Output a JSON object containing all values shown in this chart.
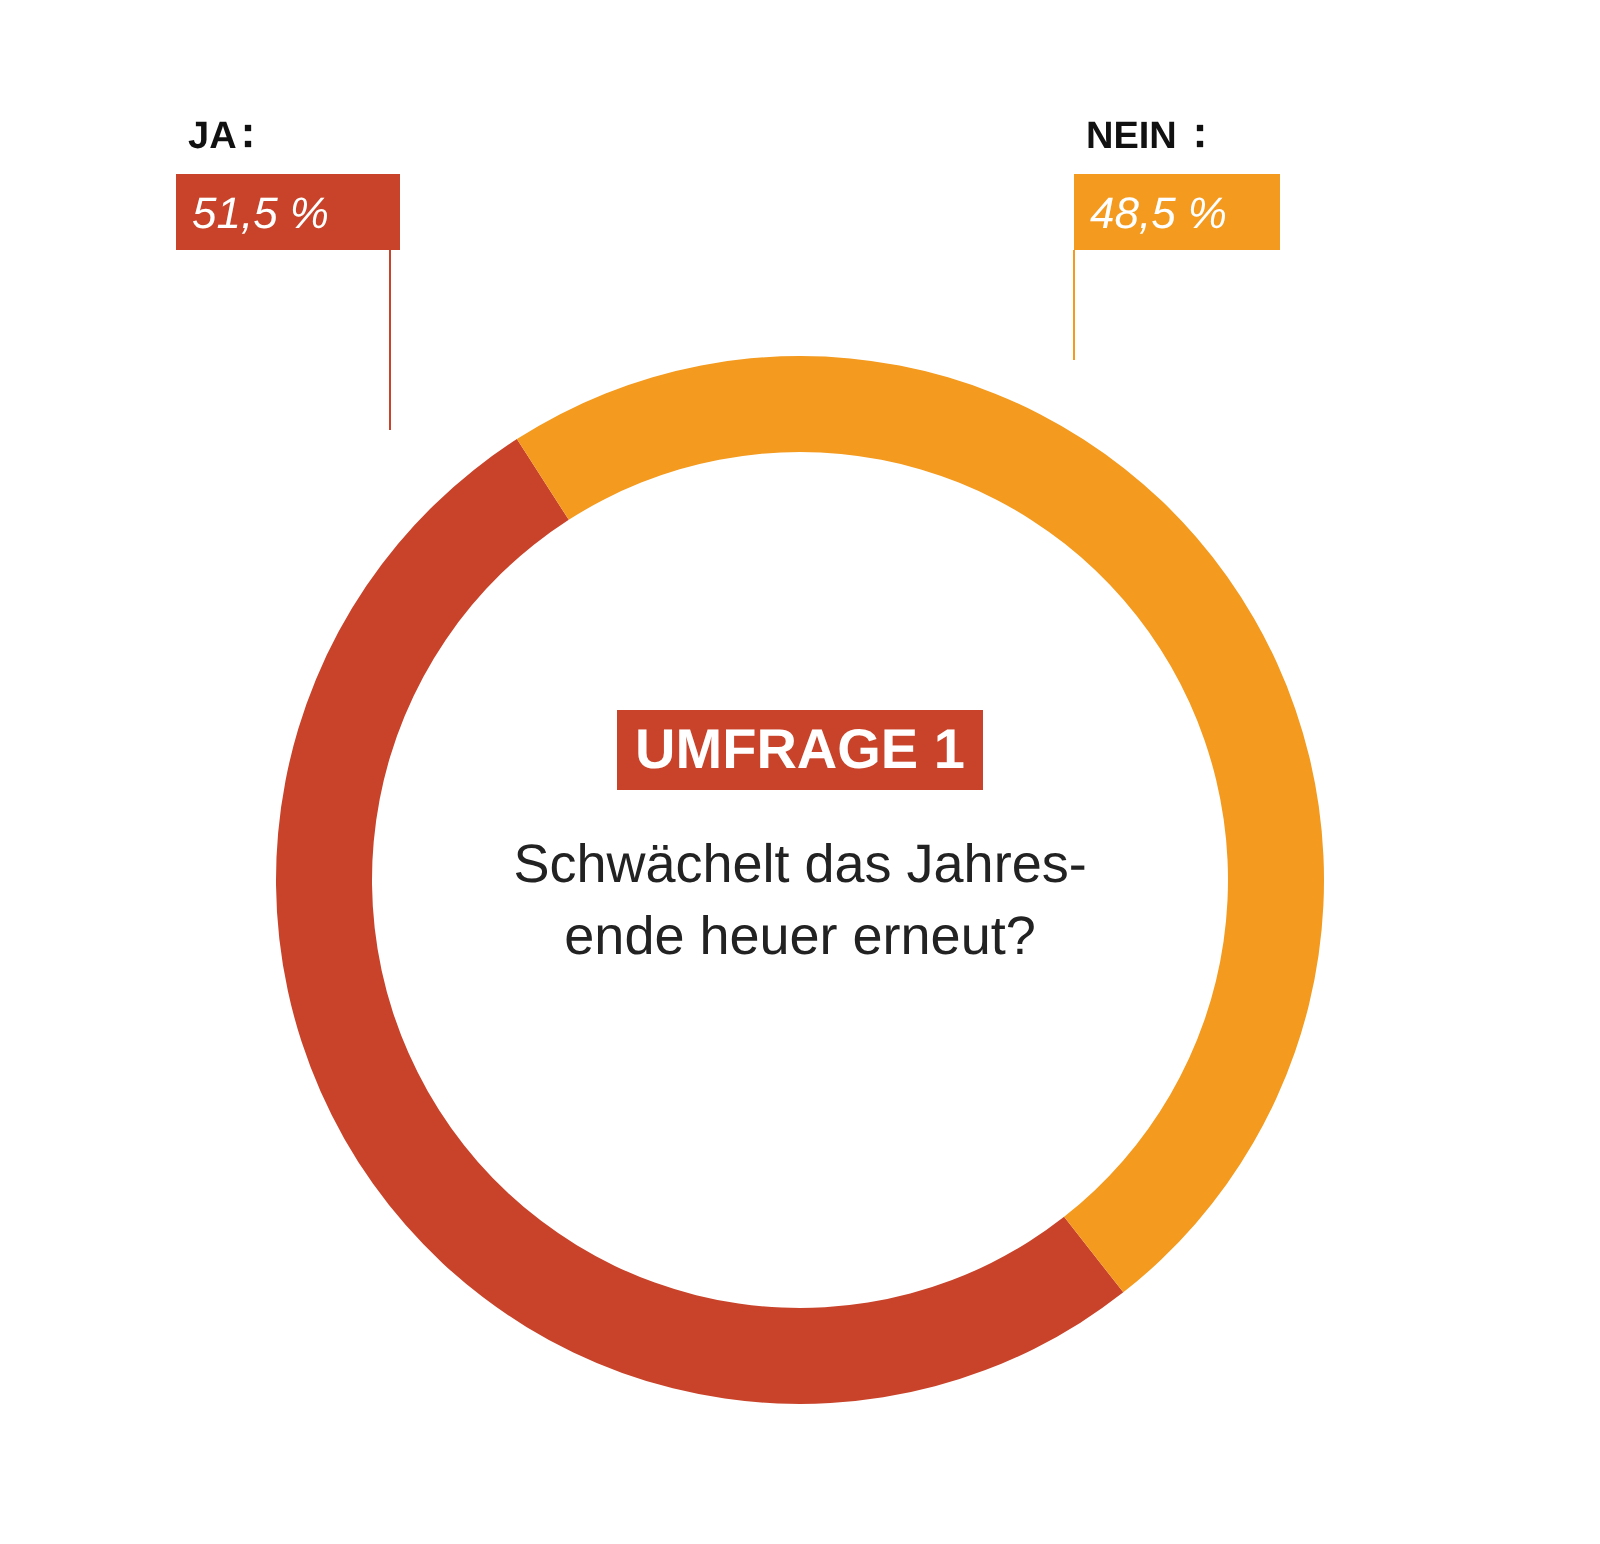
{
  "chart_data": {
    "type": "donut",
    "title": "UMFRAGE 1",
    "subtitle": "Schwächelt das Jahres-\nende heuer erneut?",
    "categories": [
      "JA",
      "NEIN"
    ],
    "values": [
      51.5,
      48.5
    ],
    "colors": [
      "#c8432a",
      "#f39a1f"
    ],
    "value_labels": [
      "51,5 %",
      "48,5 %"
    ]
  }
}
